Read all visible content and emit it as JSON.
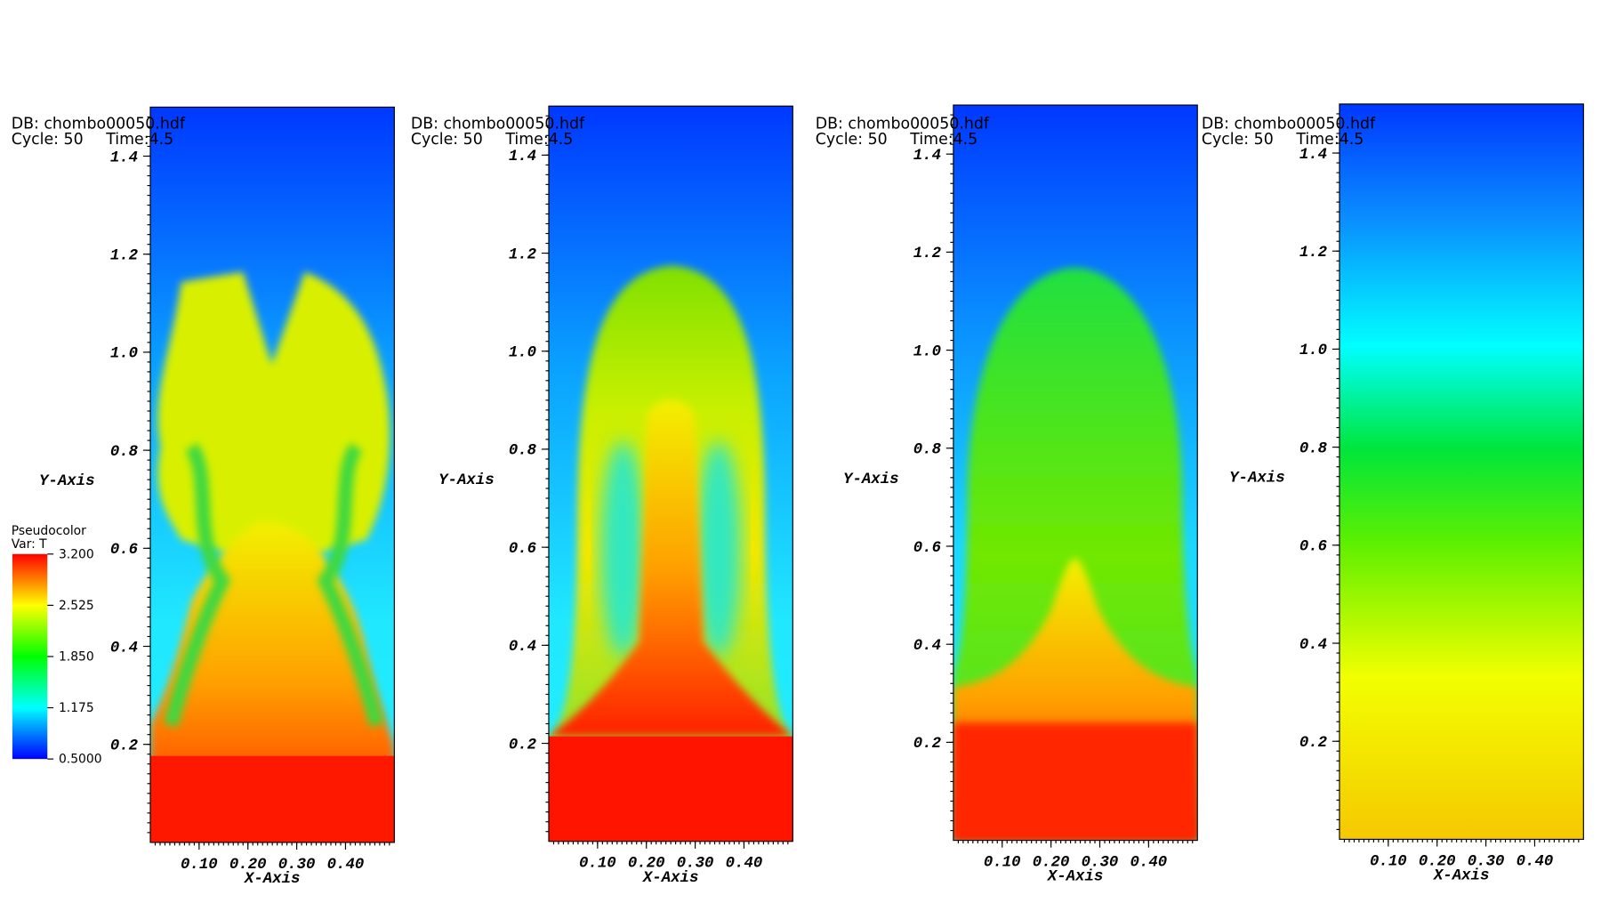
{
  "axes": {
    "xlim": [
      0,
      0.5
    ],
    "ylim": [
      0,
      1.5
    ],
    "xticks": [
      {
        "value": 0.1,
        "label": "0.10"
      },
      {
        "value": 0.2,
        "label": "0.20"
      },
      {
        "value": 0.3,
        "label": "0.30"
      },
      {
        "value": 0.4,
        "label": "0.40"
      }
    ],
    "yticks": [
      0.2,
      0.4,
      0.6,
      0.8,
      {
        "value": 1,
        "label": "1.0"
      },
      1.2,
      1.4
    ]
  },
  "panels": [
    {
      "db": "DB: chombo00050.hdf",
      "cycle": "Cycle: 50",
      "time": "Time:4.5",
      "x_label": "X-Axis",
      "y_label": "Y-Axis"
    },
    {
      "db": "DB: chombo00050.hdf",
      "cycle": "Cycle: 50",
      "time": "Time:4.5",
      "x_label": "X-Axis",
      "y_label": "Y-Axis"
    },
    {
      "db": "DB: chombo00050.hdf",
      "cycle": "Cycle: 50",
      "time": "Time:4.5",
      "x_label": "X-Axis",
      "y_label": "Y-Axis"
    },
    {
      "db": "DB: chombo00050.hdf",
      "cycle": "Cycle: 50",
      "time": "Time:4.5",
      "x_label": "X-Axis",
      "y_label": "Y-Axis"
    }
  ],
  "legend": {
    "title": "Pseudocolor",
    "variable": "Var: T",
    "range": [
      0.5,
      3.2
    ],
    "ticks": [
      {
        "value": 3.2,
        "label": "3.200"
      },
      {
        "value": 2.525,
        "label": "2.525"
      },
      {
        "value": 1.85,
        "label": "1.850"
      },
      {
        "value": 1.175,
        "label": "1.175"
      },
      {
        "value": 0.5,
        "label": "0.5000"
      }
    ]
  }
}
